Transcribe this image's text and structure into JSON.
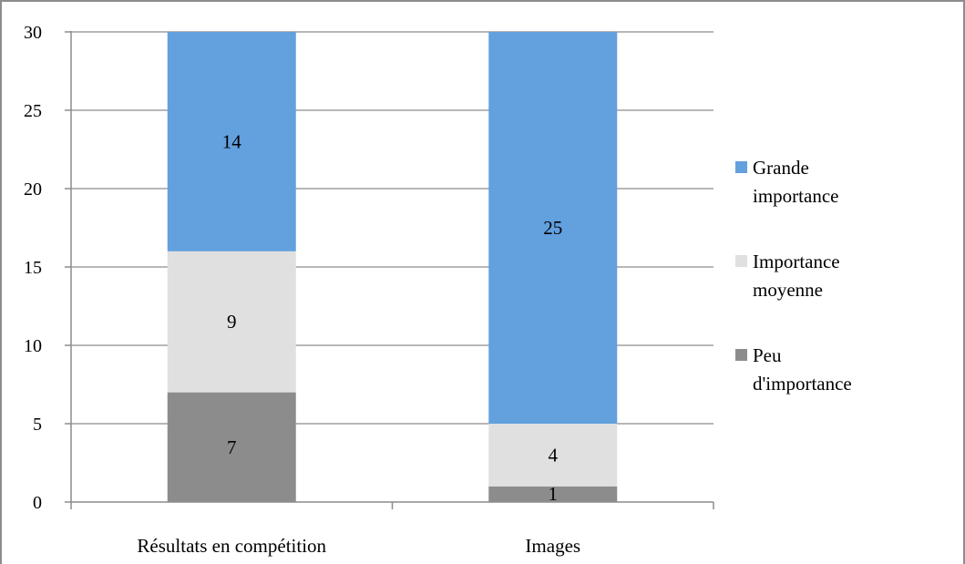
{
  "chart_data": {
    "type": "bar",
    "stacked": true,
    "categories": [
      "Résultats en compétition",
      "Images"
    ],
    "series": [
      {
        "name": "Peu d'importance",
        "values": [
          7,
          1
        ],
        "color": "#8c8c8c"
      },
      {
        "name": "Importance moyenne",
        "values": [
          9,
          4
        ],
        "color": "#e0e0e0"
      },
      {
        "name": "Grande importance",
        "values": [
          14,
          25
        ],
        "color": "#62a0de"
      }
    ],
    "ylim": [
      0,
      30
    ],
    "yticks": [
      0,
      5,
      10,
      15,
      20,
      25,
      30
    ],
    "grid": true,
    "legend": {
      "position": "right",
      "order": [
        "Grande importance",
        "Importance moyenne",
        "Peu d'importance"
      ],
      "lines": {
        "Grande importance": [
          "Grande",
          "importance"
        ],
        "Importance moyenne": [
          "Importance",
          "moyenne"
        ],
        "Peu d'importance": [
          "Peu",
          "d'importance"
        ]
      }
    },
    "title": "",
    "xlabel": "",
    "ylabel": ""
  }
}
